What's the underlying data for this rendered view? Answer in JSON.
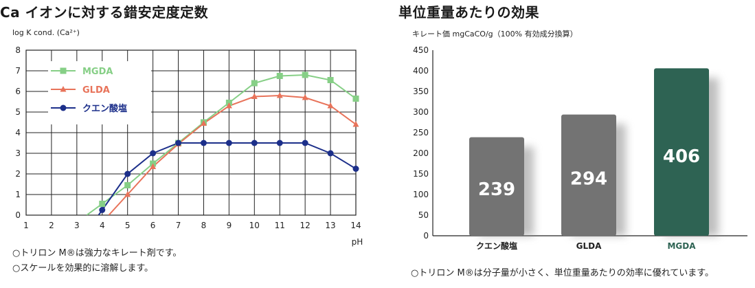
{
  "left_panel": {
    "title": "Ca イオンに対する錯安定度定数",
    "ylabel": "log K cond. (Ca²⁺)",
    "xlabel": "pH",
    "notes": [
      "○トリロン M®は強力なキレート剤です。",
      "○スケールを効果的に溶解します。"
    ]
  },
  "right_panel": {
    "title": "単位重量あたりの効果",
    "ylabel": "キレート価 mgCaCO/g（100% 有効成分換算）",
    "note": "○トリロン M®は分子量が小さく、単位重量あたりの効率に優れています。"
  },
  "chart_data": [
    {
      "type": "line",
      "xlim": [
        1,
        14
      ],
      "ylim": [
        0,
        8
      ],
      "grid": true,
      "legend_position": "top-left",
      "xlabel": "pH",
      "ylabel": "log K cond. (Ca²⁺)",
      "x": [
        4,
        5,
        6,
        7,
        8,
        9,
        10,
        11,
        12,
        13,
        14
      ],
      "series": [
        {
          "name": "MGDA",
          "color": "#86cf86",
          "marker": "square",
          "values": [
            0.55,
            1.45,
            2.5,
            3.5,
            4.5,
            5.45,
            6.4,
            6.75,
            6.8,
            6.55,
            5.65
          ]
        },
        {
          "name": "GLDA",
          "color": "#e8735a",
          "marker": "triangle",
          "values": [
            null,
            1.0,
            2.35,
            3.45,
            4.45,
            5.3,
            5.75,
            5.8,
            5.7,
            5.3,
            4.4
          ]
        },
        {
          "name": "クエン酸塩",
          "color": "#1c2f8a",
          "marker": "circle",
          "values": [
            0.25,
            2.0,
            3.0,
            3.5,
            3.5,
            3.5,
            3.5,
            3.5,
            3.5,
            3.0,
            2.25
          ]
        }
      ]
    },
    {
      "type": "bar",
      "ylim": [
        0,
        450
      ],
      "grid": false,
      "ylabel": "キレート価 mgCaCO/g（100% 有効成分換算）",
      "categories": [
        "クエン酸塩",
        "GLDA",
        "MGDA"
      ],
      "values": [
        239,
        294,
        406
      ],
      "colors": [
        "#737373",
        "#737373",
        "#2e6353"
      ],
      "category_label_colors": [
        "#222222",
        "#222222",
        "#2e6353"
      ]
    }
  ]
}
